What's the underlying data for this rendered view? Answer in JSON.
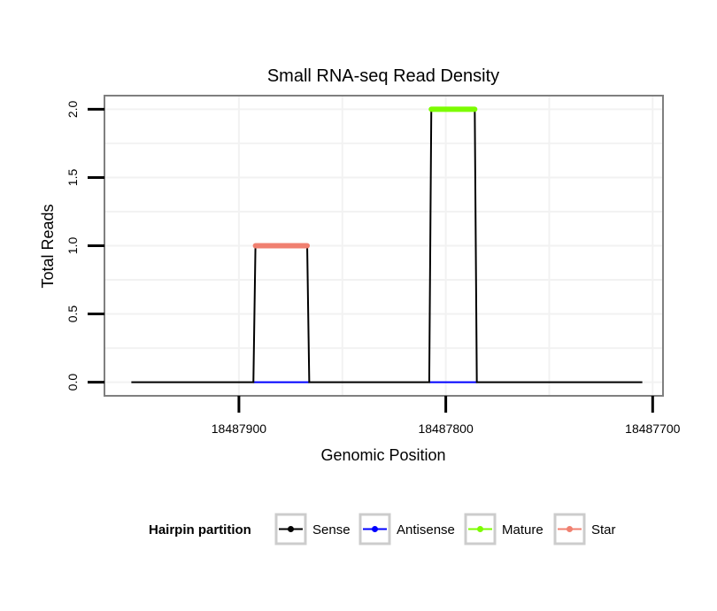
{
  "chart_data": {
    "type": "line",
    "title": "Small RNA-seq Read Density",
    "xlabel": "Genomic Position",
    "ylabel": "Total Reads",
    "xlim": [
      18487965,
      18487695
    ],
    "x_reversed": true,
    "ylim": [
      -0.1,
      2.1
    ],
    "x_ticks": [
      18487900,
      18487800,
      18487700
    ],
    "y_ticks": [
      0.0,
      0.5,
      1.0,
      1.5,
      2.0
    ],
    "y_tick_labels": [
      "0.0",
      "0.5",
      "1.0",
      "1.5",
      "2.0"
    ],
    "grid": true,
    "series": [
      {
        "name": "Sense",
        "color": "#000000",
        "x": [
          18487952,
          18487893,
          18487892,
          18487867,
          18487866,
          18487808,
          18487807,
          18487786,
          18487785,
          18487705
        ],
        "y": [
          0,
          0,
          1,
          1,
          0,
          0,
          2,
          2,
          0,
          0
        ]
      },
      {
        "name": "Antisense",
        "color": "#0000ff",
        "x": [
          18487893,
          18487866,
          18487808,
          18487785
        ],
        "y": [
          0,
          0,
          0,
          0
        ],
        "segments": [
          [
            0,
            1
          ],
          [
            2,
            3
          ]
        ]
      },
      {
        "name": "Mature",
        "color": "#7cfc00",
        "x": [
          18487807,
          18487786
        ],
        "y": [
          2,
          2
        ]
      },
      {
        "name": "Star",
        "color": "#f08070",
        "x": [
          18487892,
          18487867
        ],
        "y": [
          1,
          1
        ]
      }
    ],
    "legend": {
      "title": "Hairpin partition",
      "position": "bottom",
      "entries": [
        {
          "label": "Sense",
          "color": "#000000"
        },
        {
          "label": "Antisense",
          "color": "#0000ff"
        },
        {
          "label": "Mature",
          "color": "#7cfc00"
        },
        {
          "label": "Star",
          "color": "#f08070"
        }
      ]
    }
  }
}
